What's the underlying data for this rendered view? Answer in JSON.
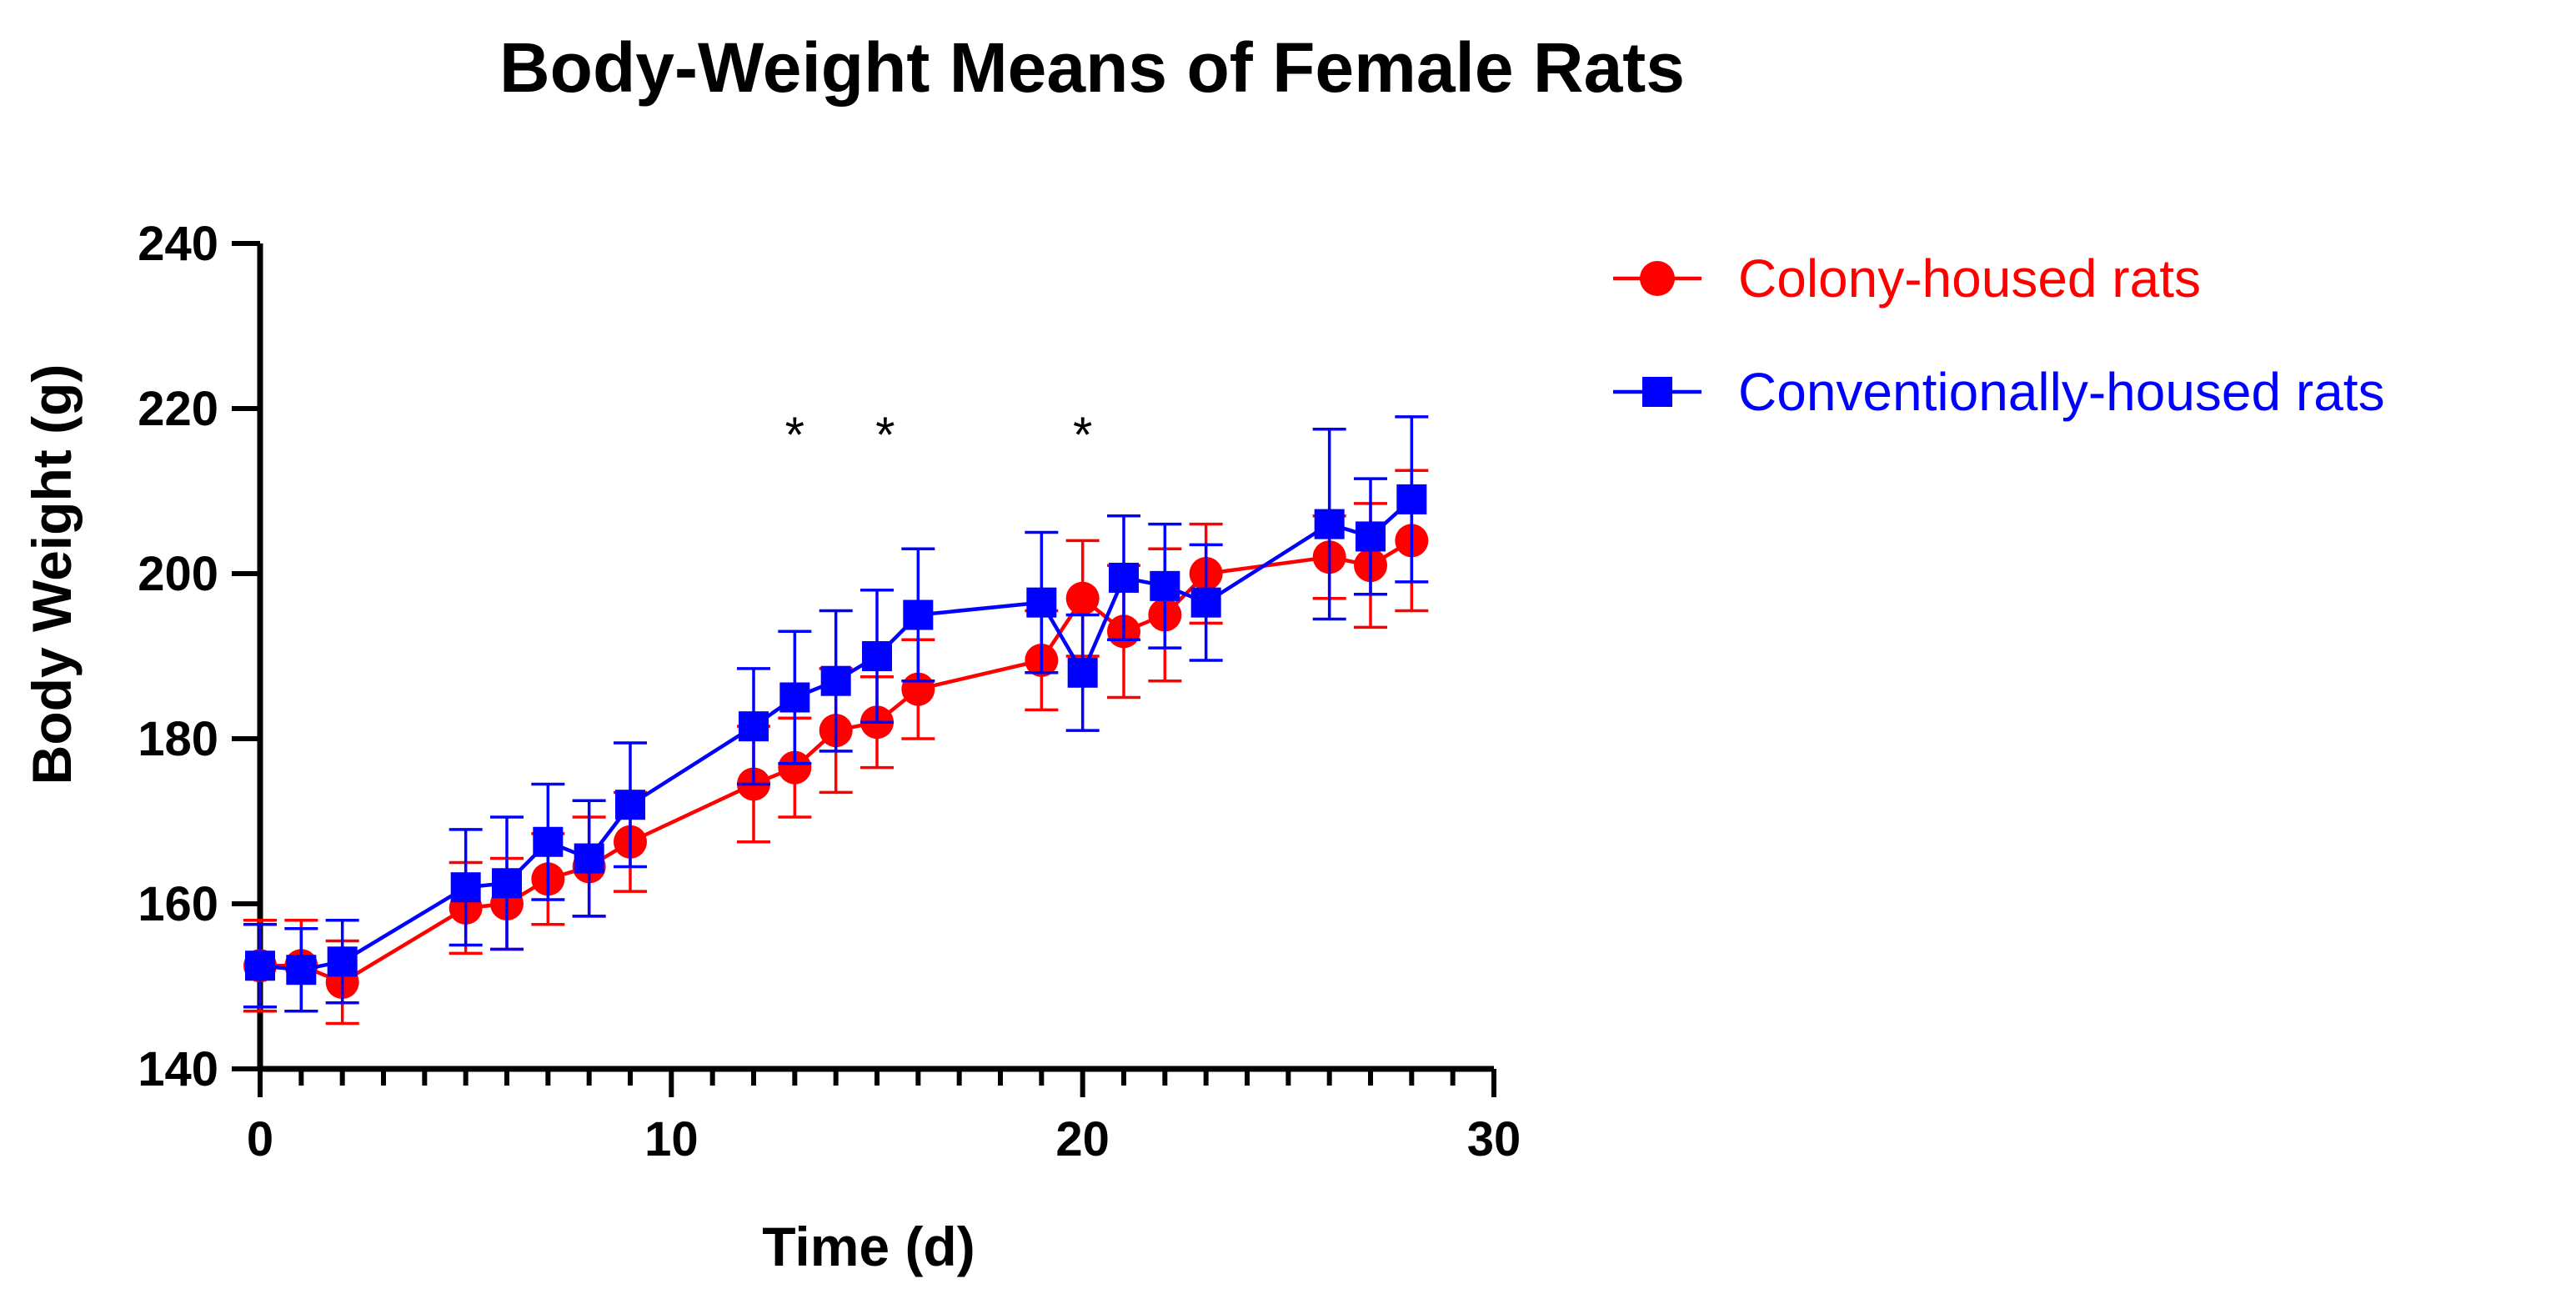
{
  "chart_data": {
    "type": "line",
    "title": "Body-Weight Means of Female Rats",
    "xlabel": "Time (d)",
    "ylabel": "Body Weight (g)",
    "xlim": [
      0,
      30
    ],
    "ylim": [
      140,
      240
    ],
    "x_ticks": [
      0,
      10,
      20,
      30
    ],
    "y_ticks": [
      140,
      160,
      180,
      200,
      220,
      240
    ],
    "x_minor_step": 1,
    "y_minor_step": 20,
    "grid": false,
    "legend_position": "right",
    "series": [
      {
        "name": "Colony-housed rats",
        "color": "#ff0000",
        "marker": "circle",
        "x": [
          0,
          1,
          2,
          5,
          6,
          7,
          8,
          9,
          12,
          13,
          14,
          15,
          16,
          19,
          20,
          21,
          22,
          23,
          26,
          27,
          28
        ],
        "values": [
          152.5,
          152.5,
          150.5,
          159.5,
          160.0,
          163.0,
          164.5,
          167.5,
          174.5,
          176.5,
          181.0,
          182.0,
          186.0,
          189.5,
          197.0,
          193.0,
          195.0,
          200.0,
          202.0,
          201.0,
          204.0
        ],
        "error": [
          5.5,
          5.5,
          5.0,
          5.5,
          5.5,
          5.5,
          6.0,
          6.0,
          7.0,
          6.0,
          7.5,
          5.5,
          6.0,
          6.0,
          7.0,
          8.0,
          8.0,
          6.0,
          5.0,
          7.5,
          8.5
        ]
      },
      {
        "name": "Conventionally-housed rats",
        "color": "#0000ff",
        "marker": "square",
        "x": [
          0,
          1,
          2,
          5,
          6,
          7,
          8,
          9,
          12,
          13,
          14,
          15,
          16,
          19,
          20,
          21,
          22,
          23,
          26,
          27,
          28
        ],
        "values": [
          152.5,
          152.0,
          153.0,
          162.0,
          162.5,
          167.5,
          165.5,
          172.0,
          181.5,
          185.0,
          187.0,
          190.0,
          195.0,
          196.5,
          188.0,
          199.5,
          198.5,
          196.5,
          206.0,
          204.5,
          209.0
        ],
        "error": [
          5.0,
          5.0,
          5.0,
          7.0,
          8.0,
          7.0,
          7.0,
          7.5,
          7.0,
          8.0,
          8.5,
          8.0,
          8.0,
          8.5,
          7.0,
          7.5,
          7.5,
          7.0,
          11.5,
          7.0,
          10.0
        ]
      }
    ],
    "annotations": [
      {
        "text": "*",
        "x": 13,
        "y": 218
      },
      {
        "text": "*",
        "x": 15.2,
        "y": 218
      },
      {
        "text": "*",
        "x": 20,
        "y": 218
      }
    ]
  }
}
